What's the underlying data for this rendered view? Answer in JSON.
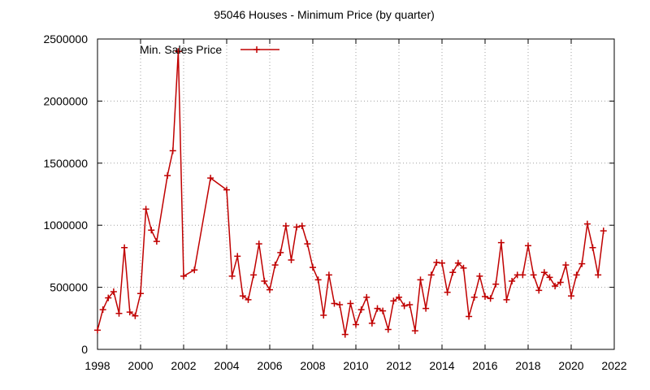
{
  "chart_data": {
    "type": "line",
    "title": "95046 Houses - Minimum Price (by quarter)",
    "xlabel": "",
    "ylabel": "",
    "xlim": [
      1998,
      2022
    ],
    "ylim": [
      0,
      2500000
    ],
    "x_ticks": [
      "1998",
      "2000",
      "2002",
      "2004",
      "2006",
      "2008",
      "2010",
      "2012",
      "2014",
      "2016",
      "2018",
      "2020",
      "2022"
    ],
    "y_ticks": [
      "0",
      "500000",
      "1000000",
      "1500000",
      "2000000",
      "2500000"
    ],
    "grid": true,
    "legend_position": "top-left",
    "colors": {
      "series": "#c00000",
      "grid": "#a0a0a0",
      "axis": "#000000"
    },
    "series": [
      {
        "name": "Min. Sales Price",
        "x": [
          1998.0,
          1998.25,
          1998.5,
          1998.75,
          1999.0,
          1999.25,
          1999.5,
          1999.75,
          2000.0,
          2000.25,
          2000.5,
          2000.75,
          2001.25,
          2001.5,
          2001.75,
          2002.0,
          2002.5,
          2003.25,
          2004.0,
          2004.25,
          2004.5,
          2004.75,
          2005.0,
          2005.25,
          2005.5,
          2005.75,
          2006.0,
          2006.25,
          2006.5,
          2006.75,
          2007.0,
          2007.25,
          2007.5,
          2007.75,
          2008.0,
          2008.25,
          2008.5,
          2008.75,
          2009.0,
          2009.25,
          2009.5,
          2009.75,
          2010.0,
          2010.25,
          2010.5,
          2010.75,
          2011.0,
          2011.25,
          2011.5,
          2011.75,
          2012.0,
          2012.25,
          2012.5,
          2012.75,
          2013.0,
          2013.25,
          2013.5,
          2013.75,
          2014.0,
          2014.25,
          2014.5,
          2014.75,
          2015.0,
          2015.25,
          2015.5,
          2015.75,
          2016.0,
          2016.25,
          2016.5,
          2016.75,
          2017.0,
          2017.25,
          2017.5,
          2017.75,
          2018.0,
          2018.25,
          2018.5,
          2018.75,
          2019.0,
          2019.25,
          2019.5,
          2019.75,
          2020.0,
          2020.25,
          2020.5,
          2020.75,
          2021.0,
          2021.25,
          2021.5
        ],
        "values": [
          155000,
          320000,
          415000,
          465000,
          290000,
          820000,
          300000,
          270000,
          450000,
          1130000,
          960000,
          870000,
          1400000,
          1600000,
          2400000,
          590000,
          640000,
          1380000,
          1285000,
          590000,
          750000,
          430000,
          400000,
          600000,
          850000,
          550000,
          480000,
          680000,
          780000,
          995000,
          720000,
          985000,
          995000,
          850000,
          660000,
          560000,
          275000,
          600000,
          370000,
          360000,
          120000,
          370000,
          200000,
          320000,
          420000,
          210000,
          330000,
          310000,
          160000,
          390000,
          420000,
          350000,
          360000,
          150000,
          560000,
          330000,
          600000,
          700000,
          695000,
          460000,
          620000,
          695000,
          655000,
          265000,
          420000,
          590000,
          425000,
          410000,
          525000,
          860000,
          400000,
          550000,
          600000,
          600000,
          835000,
          600000,
          475000,
          620000,
          580000,
          510000,
          540000,
          680000,
          430000,
          600000,
          690000,
          1010000,
          820000,
          600000,
          955000
        ]
      }
    ]
  }
}
